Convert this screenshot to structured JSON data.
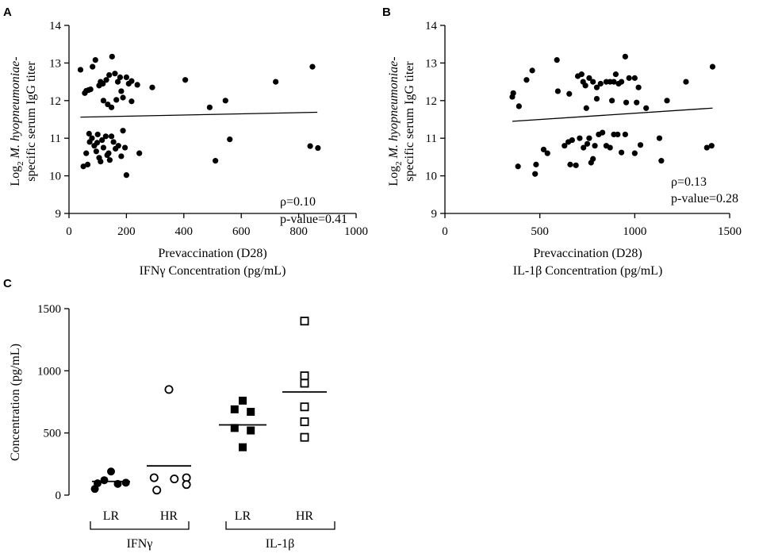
{
  "chart_data": [
    {
      "panel": "A",
      "type": "scatter",
      "xlabel": [
        "Prevaccination (D28)",
        "IFNγ Concentration (pg/mL)"
      ],
      "ylabel": [
        "Log",
        "2",
        " M. hyopneumoniae",
        "-",
        "specific serum IgG titer"
      ],
      "xlim": [
        0,
        1000
      ],
      "ylim": [
        9,
        14
      ],
      "xticks": [
        "0",
        "200",
        "400",
        "600",
        "800",
        "1000"
      ],
      "yticks": [
        "9",
        "10",
        "11",
        "12",
        "13",
        "14"
      ],
      "annotations": [
        "ρ=0.10",
        "p-value=0.41"
      ],
      "trendline": [
        [
          40,
          11.56
        ],
        [
          865,
          11.69
        ]
      ],
      "points": [
        [
          40,
          12.82
        ],
        [
          55,
          12.2
        ],
        [
          60,
          12.26
        ],
        [
          68,
          12.28
        ],
        [
          75,
          12.3
        ],
        [
          82,
          12.9
        ],
        [
          92,
          13.08
        ],
        [
          105,
          12.4
        ],
        [
          118,
          12.45
        ],
        [
          130,
          12.55
        ],
        [
          140,
          12.68
        ],
        [
          150,
          13.17
        ],
        [
          160,
          12.72
        ],
        [
          170,
          12.5
        ],
        [
          178,
          12.62
        ],
        [
          182,
          12.25
        ],
        [
          200,
          12.62
        ],
        [
          208,
          12.45
        ],
        [
          218,
          12.52
        ],
        [
          238,
          12.42
        ],
        [
          110,
          12.5
        ],
        [
          120,
          12.0
        ],
        [
          135,
          11.9
        ],
        [
          148,
          11.82
        ],
        [
          165,
          12.02
        ],
        [
          188,
          12.08
        ],
        [
          218,
          11.98
        ],
        [
          290,
          12.35
        ],
        [
          405,
          12.55
        ],
        [
          720,
          12.5
        ],
        [
          848,
          12.9
        ],
        [
          490,
          11.82
        ],
        [
          545,
          12.0
        ],
        [
          50,
          10.25
        ],
        [
          60,
          10.6
        ],
        [
          65,
          10.3
        ],
        [
          72,
          10.9
        ],
        [
          80,
          11.0
        ],
        [
          88,
          10.8
        ],
        [
          95,
          10.65
        ],
        [
          100,
          11.1
        ],
        [
          105,
          10.48
        ],
        [
          110,
          10.38
        ],
        [
          115,
          10.95
        ],
        [
          120,
          10.75
        ],
        [
          128,
          11.05
        ],
        [
          133,
          10.55
        ],
        [
          138,
          10.6
        ],
        [
          142,
          10.42
        ],
        [
          148,
          11.05
        ],
        [
          155,
          10.9
        ],
        [
          162,
          10.72
        ],
        [
          172,
          10.8
        ],
        [
          182,
          10.52
        ],
        [
          188,
          11.2
        ],
        [
          195,
          10.75
        ],
        [
          200,
          10.02
        ],
        [
          245,
          10.6
        ],
        [
          510,
          10.4
        ],
        [
          560,
          10.97
        ],
        [
          840,
          10.79
        ],
        [
          867,
          10.74
        ],
        [
          70,
          11.12
        ],
        [
          98,
          10.88
        ]
      ]
    },
    {
      "panel": "B",
      "type": "scatter",
      "xlabel": [
        "Prevaccination (D28)",
        "IL-1β Concentration (pg/mL)"
      ],
      "ylabel": [
        "Log",
        "2",
        " M. hyopneumoniae",
        "-",
        "specific serum IgG titer"
      ],
      "xlim": [
        0,
        1500
      ],
      "ylim": [
        9,
        14
      ],
      "xticks": [
        "0",
        "500",
        "1000",
        "1500"
      ],
      "yticks": [
        "9",
        "10",
        "11",
        "12",
        "13",
        "14"
      ],
      "annotations": [
        "ρ=0.13",
        "p-value=0.28"
      ],
      "trendline": [
        [
          355,
          11.45
        ],
        [
          1410,
          11.8
        ]
      ],
      "points": [
        [
          355,
          12.1
        ],
        [
          360,
          12.2
        ],
        [
          390,
          11.85
        ],
        [
          430,
          12.55
        ],
        [
          460,
          12.8
        ],
        [
          590,
          13.08
        ],
        [
          595,
          12.25
        ],
        [
          655,
          12.18
        ],
        [
          700,
          12.65
        ],
        [
          720,
          12.7
        ],
        [
          728,
          12.5
        ],
        [
          740,
          12.4
        ],
        [
          760,
          12.6
        ],
        [
          780,
          12.5
        ],
        [
          800,
          12.35
        ],
        [
          820,
          12.45
        ],
        [
          850,
          12.5
        ],
        [
          870,
          12.5
        ],
        [
          890,
          12.5
        ],
        [
          900,
          12.7
        ],
        [
          915,
          12.45
        ],
        [
          930,
          12.5
        ],
        [
          950,
          13.17
        ],
        [
          970,
          12.6
        ],
        [
          1000,
          12.6
        ],
        [
          1020,
          12.35
        ],
        [
          1270,
          12.5
        ],
        [
          1410,
          12.9
        ],
        [
          745,
          11.8
        ],
        [
          800,
          12.05
        ],
        [
          880,
          12.0
        ],
        [
          955,
          11.95
        ],
        [
          1010,
          11.95
        ],
        [
          1060,
          11.8
        ],
        [
          1170,
          12.0
        ],
        [
          385,
          10.25
        ],
        [
          475,
          10.05
        ],
        [
          480,
          10.3
        ],
        [
          520,
          10.7
        ],
        [
          540,
          10.6
        ],
        [
          630,
          10.8
        ],
        [
          650,
          10.9
        ],
        [
          660,
          10.3
        ],
        [
          670,
          10.95
        ],
        [
          690,
          10.28
        ],
        [
          710,
          11.0
        ],
        [
          730,
          10.75
        ],
        [
          750,
          10.85
        ],
        [
          760,
          11.0
        ],
        [
          770,
          10.35
        ],
        [
          780,
          10.45
        ],
        [
          790,
          10.8
        ],
        [
          810,
          11.1
        ],
        [
          830,
          11.15
        ],
        [
          850,
          10.8
        ],
        [
          870,
          10.75
        ],
        [
          890,
          11.1
        ],
        [
          910,
          11.1
        ],
        [
          930,
          10.62
        ],
        [
          950,
          11.1
        ],
        [
          1000,
          10.6
        ],
        [
          1030,
          10.82
        ],
        [
          1130,
          11.0
        ],
        [
          1140,
          10.4
        ],
        [
          1380,
          10.75
        ],
        [
          1405,
          10.8
        ]
      ]
    },
    {
      "panel": "C",
      "type": "scatter",
      "ylabel": "Concentration (pg/mL)",
      "ylim": [
        0,
        1500
      ],
      "yticks": [
        "0",
        "500",
        "1000",
        "1500"
      ],
      "categories": [
        "LR",
        "HR",
        "LR",
        "HR"
      ],
      "groups": [
        "IFNγ",
        "IL-1β"
      ],
      "series": [
        {
          "name": "IFNγ LR",
          "marker": "filled-circle",
          "mean": 110,
          "points": [
            [
              -24,
              50
            ],
            [
              -10,
              120
            ],
            [
              0,
              190
            ],
            [
              10,
              90
            ],
            [
              22,
              100
            ],
            [
              -20,
              95
            ]
          ]
        },
        {
          "name": "IFNγ HR",
          "marker": "open-circle",
          "mean": 235,
          "points": [
            [
              -22,
              140
            ],
            [
              -18,
              40
            ],
            [
              0,
              850
            ],
            [
              8,
              130
            ],
            [
              26,
              140
            ],
            [
              26,
              85
            ]
          ]
        },
        {
          "name": "IL-1β LR",
          "marker": "filled-square",
          "mean": 565,
          "points": [
            [
              0,
              760
            ],
            [
              -12,
              690
            ],
            [
              12,
              670
            ],
            [
              -12,
              540
            ],
            [
              12,
              520
            ],
            [
              0,
              385
            ]
          ]
        },
        {
          "name": "IL-1β HR",
          "marker": "open-square",
          "mean": 830,
          "points": [
            [
              0,
              1400
            ],
            [
              0,
              960
            ],
            [
              0,
              900
            ],
            [
              0,
              710
            ],
            [
              0,
              590
            ],
            [
              0,
              465
            ]
          ]
        }
      ]
    }
  ]
}
